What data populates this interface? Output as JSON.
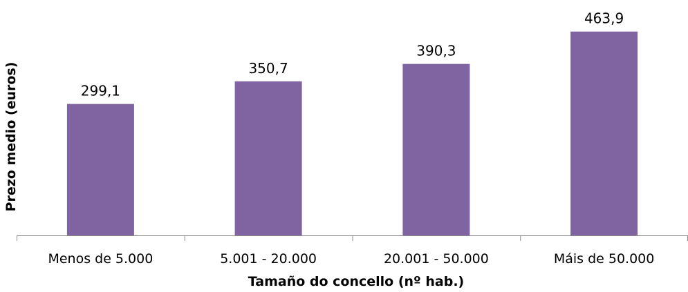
{
  "chart_data": {
    "type": "bar",
    "title": "",
    "xlabel": "Tamaño do concello (nº hab.)",
    "ylabel": "Prezo medio (euros)",
    "categories": [
      "Menos de 5.000",
      "5.001 - 20.000",
      "20.001 - 50.000",
      "Máis de 50.000"
    ],
    "values": [
      299.1,
      350.7,
      390.3,
      463.9
    ],
    "value_labels": [
      "299,1",
      "350,7",
      "390,3",
      "463,9"
    ],
    "ylim": [
      0,
      520
    ],
    "grid": false,
    "legend": "none",
    "bar_color": "#8064A2",
    "axis_color": "#888888"
  }
}
